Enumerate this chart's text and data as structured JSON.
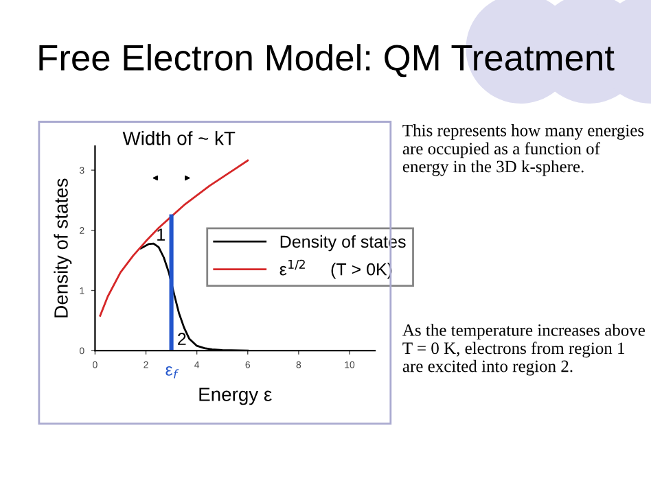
{
  "chart_data": {
    "type": "line",
    "title": "Free Electron Model: QM Treatment",
    "xlabel": "Energy ε",
    "ylabel": "Density of states",
    "xlim": [
      0,
      11
    ],
    "ylim": [
      0,
      3.4
    ],
    "xticks": [
      0,
      2,
      4,
      6,
      8,
      10
    ],
    "yticks": [
      0,
      1,
      2,
      3
    ],
    "grid": false,
    "legend": "right",
    "marker": "none",
    "line_style": "solid",
    "series": [
      {
        "name": "Density of states",
        "color": "#000000",
        "x": [
          1.8,
          2.1,
          2.3,
          2.5,
          2.7,
          2.9,
          3.1,
          3.3,
          3.5,
          3.7,
          4,
          4.3,
          4.6,
          5,
          6
        ],
        "values": [
          1.7,
          1.77,
          1.78,
          1.72,
          1.55,
          1.3,
          0.95,
          0.62,
          0.38,
          0.2,
          0.08,
          0.04,
          0.02,
          0.01,
          0
        ]
      },
      {
        "name": "ε$^{1/2}$     (T > 0K)",
        "color": "#d62728",
        "x": [
          0.2,
          0.5,
          1,
          1.5,
          2,
          2.5,
          3,
          3.5,
          4,
          4.5,
          5,
          5.5,
          6
        ],
        "values": [
          0.58,
          0.9,
          1.3,
          1.58,
          1.82,
          2.04,
          2.23,
          2.42,
          2.58,
          2.74,
          2.88,
          3.02,
          3.16
        ]
      },
      {
        "color": "#2255cc",
        "x": [
          3,
          3
        ],
        "values": [
          0,
          2.23
        ]
      }
    ],
    "annotations": [
      "Width of ~ kT",
      "1",
      "2",
      "ε$_{f}$",
      "This represents how many energies are occupied as a function of energy in the 3D k-sphere.",
      "As the temperature increases above T = 0 K, electrons from region 1 are excited into region 2."
    ]
  }
}
